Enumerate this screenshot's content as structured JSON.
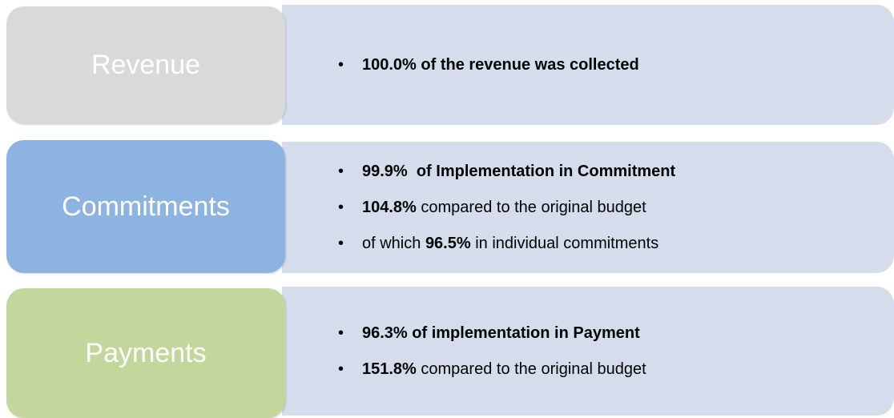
{
  "rows": [
    {
      "label": "Revenue",
      "color": "#d9d9d9",
      "bullets": [
        [
          {
            "text": "100.0% of the revenue was collected",
            "bold": true
          }
        ]
      ]
    },
    {
      "label": "Commitments",
      "color": "#8db3e2",
      "bullets": [
        [
          {
            "text": "99.9%  of Implementation in Commitment",
            "bold": true
          }
        ],
        [
          {
            "text": "104.8%",
            "bold": true
          },
          {
            "text": " compared to the original budget",
            "bold": false
          }
        ],
        [
          {
            "text": "of which ",
            "bold": false
          },
          {
            "text": "96.5%",
            "bold": true
          },
          {
            "text": " in individual commitments",
            "bold": false
          }
        ]
      ]
    },
    {
      "label": "Payments",
      "color": "#c3d69b",
      "bullets": [
        [
          {
            "text": "96.3% of implementation in Payment",
            "bold": true
          }
        ],
        [
          {
            "text": "151.8%",
            "bold": true
          },
          {
            "text": " compared to the original budget",
            "bold": false
          }
        ]
      ]
    }
  ]
}
